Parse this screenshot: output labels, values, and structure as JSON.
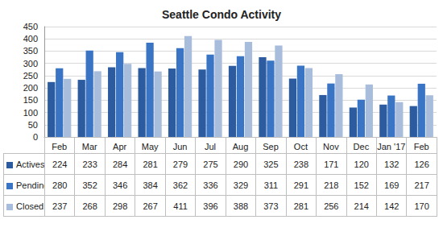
{
  "chart_data": {
    "type": "bar",
    "title": "Seattle Condo Activity",
    "categories": [
      "Feb",
      "Mar",
      "Apr",
      "May",
      "Jun",
      "Jul",
      "Aug",
      "Sep",
      "Oct",
      "Nov",
      "Dec",
      "Jan '17",
      "Feb"
    ],
    "series": [
      {
        "name": "Actives",
        "color": "#2c5c9f",
        "values": [
          224,
          233,
          284,
          281,
          279,
          275,
          290,
          325,
          238,
          171,
          120,
          132,
          126
        ]
      },
      {
        "name": "Pendings",
        "color": "#3a74c4",
        "values": [
          280,
          352,
          346,
          384,
          362,
          336,
          329,
          311,
          291,
          218,
          152,
          169,
          217
        ]
      },
      {
        "name": "Closed",
        "color": "#a8bcdc",
        "values": [
          237,
          268,
          298,
          267,
          411,
          396,
          388,
          373,
          281,
          256,
          214,
          142,
          170
        ]
      }
    ],
    "ylim": [
      0,
      450
    ],
    "yticks": [
      0,
      50,
      100,
      150,
      200,
      250,
      300,
      350,
      400,
      450
    ],
    "grid": true
  }
}
